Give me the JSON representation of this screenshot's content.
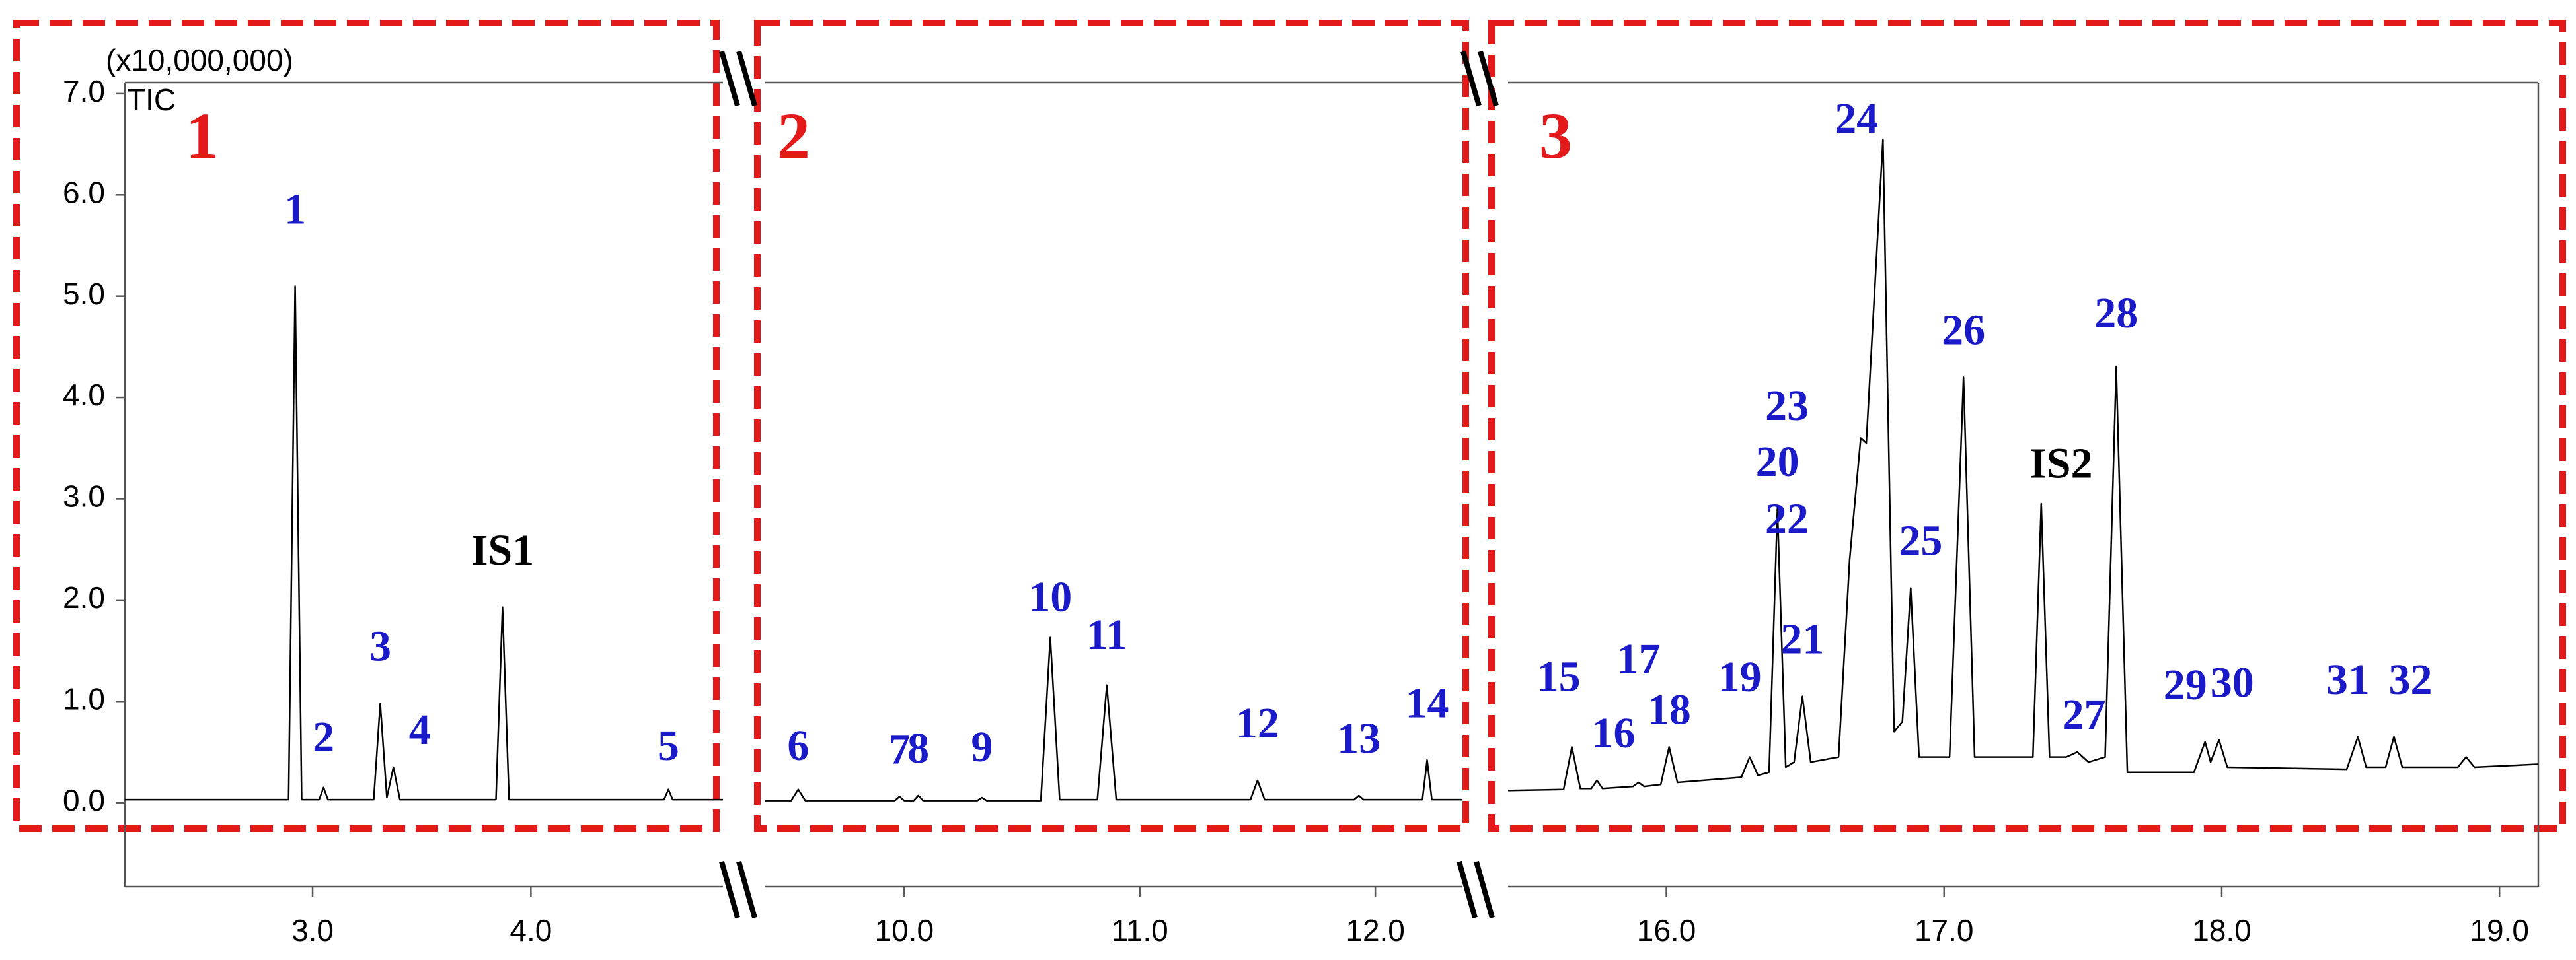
{
  "chart_data": [
    {
      "type": "line",
      "panel_label": "1",
      "panel_label_color": "#e41a1a",
      "y_multiplier": "(x10,000,000)",
      "ylabel": "TIC",
      "xlim": [
        2.14,
        4.88
      ],
      "ylim": [
        -0.83,
        7.11
      ],
      "yticks": [
        {
          "value": 0,
          "label": "0.0"
        },
        {
          "value": 1,
          "label": "1.0"
        },
        {
          "value": 2,
          "label": "2.0"
        },
        {
          "value": 3,
          "label": "3.0"
        },
        {
          "value": 4,
          "label": "4.0"
        },
        {
          "value": 5,
          "label": "5.0"
        },
        {
          "value": 6,
          "label": "6.0"
        },
        {
          "value": 7,
          "label": "7.0"
        }
      ],
      "xticks": [
        {
          "value": 3,
          "label": "3.0"
        },
        {
          "value": 4,
          "label": "4.0"
        }
      ],
      "color": "#000000",
      "x": [
        2.14,
        2.89,
        2.92,
        2.95,
        3.03,
        3.05,
        3.07,
        3.28,
        3.31,
        3.34,
        3.37,
        3.4,
        3.84,
        3.87,
        3.9,
        4.61,
        4.63,
        4.65,
        4.88
      ],
      "values": [
        0.03,
        0.03,
        5.1,
        0.03,
        0.03,
        0.15,
        0.03,
        0.03,
        0.98,
        0.05,
        0.35,
        0.03,
        0.03,
        1.93,
        0.03,
        0.03,
        0.13,
        0.03,
        0.03
      ],
      "peaks": [
        {
          "label": "1",
          "x": 2.92,
          "y": 5.1,
          "color": "#1a1ac8"
        },
        {
          "label": "2",
          "x": 3.05,
          "y": 0.15,
          "color": "#1a1ac8"
        },
        {
          "label": "3",
          "x": 3.31,
          "y": 0.98,
          "color": "#1a1ac8"
        },
        {
          "label": "4",
          "x": 3.37,
          "y": 0.35,
          "color": "#1a1ac8"
        },
        {
          "label": "IS1",
          "x": 3.87,
          "y": 1.93,
          "color": "#000000"
        },
        {
          "label": "5",
          "x": 4.63,
          "y": 0.13,
          "color": "#1a1ac8"
        }
      ]
    },
    {
      "type": "line",
      "panel_label": "2",
      "panel_label_color": "#e41a1a",
      "xlim": [
        9.41,
        12.37
      ],
      "ylim": [
        -0.83,
        7.11
      ],
      "xticks": [
        {
          "value": 10,
          "label": "10.0"
        },
        {
          "value": 11,
          "label": "11.0"
        },
        {
          "value": 12,
          "label": "12.0"
        }
      ],
      "color": "#000000",
      "x": [
        9.41,
        9.52,
        9.55,
        9.58,
        9.96,
        9.98,
        10.0,
        10.04,
        10.06,
        10.08,
        10.31,
        10.33,
        10.35,
        10.58,
        10.62,
        10.66,
        10.82,
        10.86,
        10.9,
        11.47,
        11.5,
        11.53,
        11.91,
        11.93,
        11.95,
        12.2,
        12.22,
        12.24,
        12.37
      ],
      "values": [
        0.02,
        0.02,
        0.13,
        0.02,
        0.02,
        0.06,
        0.02,
        0.02,
        0.07,
        0.02,
        0.02,
        0.05,
        0.02,
        0.02,
        1.63,
        0.03,
        0.03,
        1.16,
        0.03,
        0.03,
        0.22,
        0.03,
        0.03,
        0.07,
        0.03,
        0.03,
        0.42,
        0.03,
        0.03
      ],
      "peaks": [
        {
          "label": "6",
          "x": 9.55,
          "y": 0.13,
          "color": "#1a1ac8"
        },
        {
          "label": "7",
          "x": 9.98,
          "y": 0.06,
          "color": "#1a1ac8"
        },
        {
          "label": "8",
          "x": 10.06,
          "y": 0.07,
          "color": "#1a1ac8"
        },
        {
          "label": "9",
          "x": 10.33,
          "y": 0.05,
          "color": "#1a1ac8"
        },
        {
          "label": "10",
          "x": 10.62,
          "y": 1.63,
          "color": "#1a1ac8"
        },
        {
          "label": "11",
          "x": 10.86,
          "y": 1.16,
          "color": "#1a1ac8"
        },
        {
          "label": "12",
          "x": 11.5,
          "y": 0.22,
          "color": "#1a1ac8"
        },
        {
          "label": "13",
          "x": 11.93,
          "y": 0.07,
          "color": "#1a1ac8"
        },
        {
          "label": "14",
          "x": 12.22,
          "y": 0.42,
          "color": "#1a1ac8"
        }
      ]
    },
    {
      "type": "line",
      "panel_label": "3",
      "panel_label_color": "#e41a1a",
      "xlim": [
        15.43,
        19.14
      ],
      "ylim": [
        -0.83,
        7.11
      ],
      "xticks": [
        {
          "value": 16,
          "label": "16.0"
        },
        {
          "value": 17,
          "label": "17.0"
        },
        {
          "value": 18,
          "label": "18.0"
        },
        {
          "value": 19,
          "label": "19.0"
        }
      ],
      "color": "#000000",
      "x": [
        15.43,
        15.63,
        15.66,
        15.69,
        15.73,
        15.75,
        15.77,
        15.88,
        15.9,
        15.92,
        15.98,
        16.01,
        16.04,
        16.27,
        16.3,
        16.33,
        16.37,
        16.4,
        16.43,
        16.46,
        16.49,
        16.52,
        16.62,
        16.66,
        16.7,
        16.72,
        16.78,
        16.82,
        16.85,
        16.88,
        16.91,
        17.02,
        17.07,
        17.11,
        17.32,
        17.35,
        17.38,
        17.44,
        17.48,
        17.52,
        17.58,
        17.62,
        17.66,
        17.9,
        17.94,
        17.96,
        17.99,
        18.02,
        18.45,
        18.49,
        18.52,
        18.59,
        18.62,
        18.65,
        18.85,
        18.88,
        18.91,
        19.14
      ],
      "values": [
        0.12,
        0.13,
        0.55,
        0.14,
        0.14,
        0.22,
        0.14,
        0.16,
        0.2,
        0.16,
        0.18,
        0.55,
        0.2,
        0.25,
        0.45,
        0.27,
        0.3,
        2.9,
        0.35,
        0.4,
        1.05,
        0.4,
        0.45,
        2.4,
        3.6,
        3.55,
        6.55,
        0.7,
        0.8,
        2.12,
        0.45,
        0.45,
        4.2,
        0.45,
        0.45,
        2.95,
        0.45,
        0.45,
        0.5,
        0.4,
        0.45,
        4.3,
        0.3,
        0.3,
        0.6,
        0.4,
        0.62,
        0.35,
        0.33,
        0.65,
        0.35,
        0.35,
        0.65,
        0.35,
        0.35,
        0.45,
        0.35,
        0.38
      ],
      "peaks": [
        {
          "label": "15",
          "x": 15.66,
          "y": 0.55,
          "color": "#1a1ac8"
        },
        {
          "label": "16",
          "x": 15.75,
          "y": 0.22,
          "color": "#1a1ac8"
        },
        {
          "label": "17",
          "x": 15.9,
          "y": 0.2,
          "color": "#1a1ac8"
        },
        {
          "label": "18",
          "x": 16.01,
          "y": 0.55,
          "color": "#1a1ac8"
        },
        {
          "label": "19",
          "x": 16.3,
          "y": 0.45,
          "color": "#1a1ac8"
        },
        {
          "label": "20",
          "x": 16.4,
          "y": 2.9,
          "color": "#1a1ac8"
        },
        {
          "label": "21",
          "x": 16.49,
          "y": 1.05,
          "color": "#1a1ac8"
        },
        {
          "label": "22",
          "x": 16.66,
          "y": 2.4,
          "color": "#1a1ac8"
        },
        {
          "label": "23",
          "x": 16.72,
          "y": 3.55,
          "color": "#1a1ac8"
        },
        {
          "label": "24",
          "x": 16.78,
          "y": 6.55,
          "color": "#1a1ac8"
        },
        {
          "label": "25",
          "x": 16.88,
          "y": 2.12,
          "color": "#1a1ac8"
        },
        {
          "label": "26",
          "x": 17.07,
          "y": 4.2,
          "color": "#1a1ac8"
        },
        {
          "label": "IS2",
          "x": 17.35,
          "y": 2.95,
          "color": "#000000"
        },
        {
          "label": "27",
          "x": 17.48,
          "y": 0.5,
          "color": "#1a1ac8"
        },
        {
          "label": "28",
          "x": 17.62,
          "y": 4.3,
          "color": "#1a1ac8"
        },
        {
          "label": "29",
          "x": 17.94,
          "y": 0.6,
          "color": "#1a1ac8"
        },
        {
          "label": "30",
          "x": 17.99,
          "y": 0.62,
          "color": "#1a1ac8"
        },
        {
          "label": "31",
          "x": 18.49,
          "y": 0.65,
          "color": "#1a1ac8"
        },
        {
          "label": "32",
          "x": 18.62,
          "y": 0.65,
          "color": "#1a1ac8"
        }
      ]
    }
  ]
}
